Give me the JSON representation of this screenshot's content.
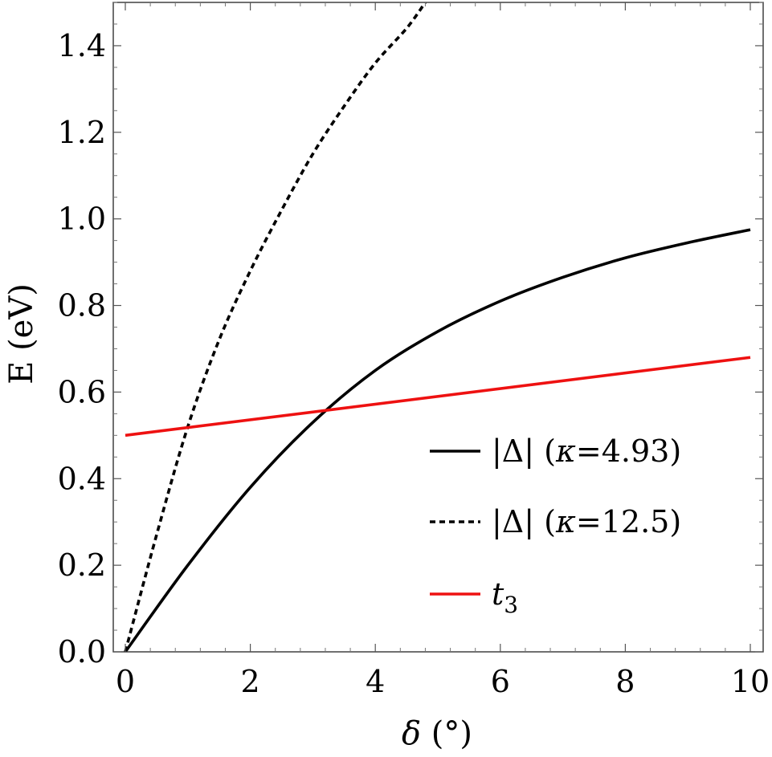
{
  "chart_data": {
    "type": "line",
    "title": "",
    "xlabel": "δ (°)",
    "ylabel": "E (eV)",
    "xlim": [
      0,
      10
    ],
    "ylim": [
      0,
      1.5
    ],
    "xticks": [
      0,
      2,
      4,
      6,
      8,
      10
    ],
    "yticks": [
      0.0,
      0.2,
      0.4,
      0.6,
      0.8,
      1.0,
      1.2,
      1.4
    ],
    "xtick_labels": [
      "0",
      "2",
      "4",
      "6",
      "8",
      "10"
    ],
    "ytick_labels": [
      "0.0",
      "0.2",
      "0.4",
      "0.6",
      "0.8",
      "1.0",
      "1.2",
      "1.4"
    ],
    "grid": false,
    "legend_position": "bottom-right",
    "series": [
      {
        "name": "|Δ| (κ=4.93)",
        "color": "#000000",
        "style": "solid",
        "x": [
          0,
          1,
          2,
          3,
          4,
          5,
          6,
          7,
          8,
          9,
          10
        ],
        "y": [
          0.0,
          0.2,
          0.38,
          0.53,
          0.65,
          0.74,
          0.81,
          0.865,
          0.91,
          0.945,
          0.975
        ]
      },
      {
        "name": "|Δ| (κ=12.5)",
        "color": "#000000",
        "style": "dashed",
        "x": [
          0,
          0.5,
          1,
          1.5,
          2,
          2.5,
          3,
          3.5,
          4,
          4.5,
          4.8
        ],
        "y": [
          0.0,
          0.27,
          0.52,
          0.72,
          0.88,
          1.02,
          1.15,
          1.26,
          1.36,
          1.44,
          1.5
        ]
      },
      {
        "name": "t3",
        "color": "#ee1111",
        "style": "solid",
        "x": [
          0,
          10
        ],
        "y": [
          0.5,
          0.68
        ]
      }
    ]
  },
  "legend": {
    "entries": [
      {
        "label_main": "|Δ| (",
        "label_var": "κ",
        "label_rest": "=4.93)"
      },
      {
        "label_main": "|Δ| (",
        "label_var": "κ",
        "label_rest": "=12.5)"
      },
      {
        "label_main": "t",
        "label_var": "",
        "label_rest": "3"
      }
    ]
  }
}
